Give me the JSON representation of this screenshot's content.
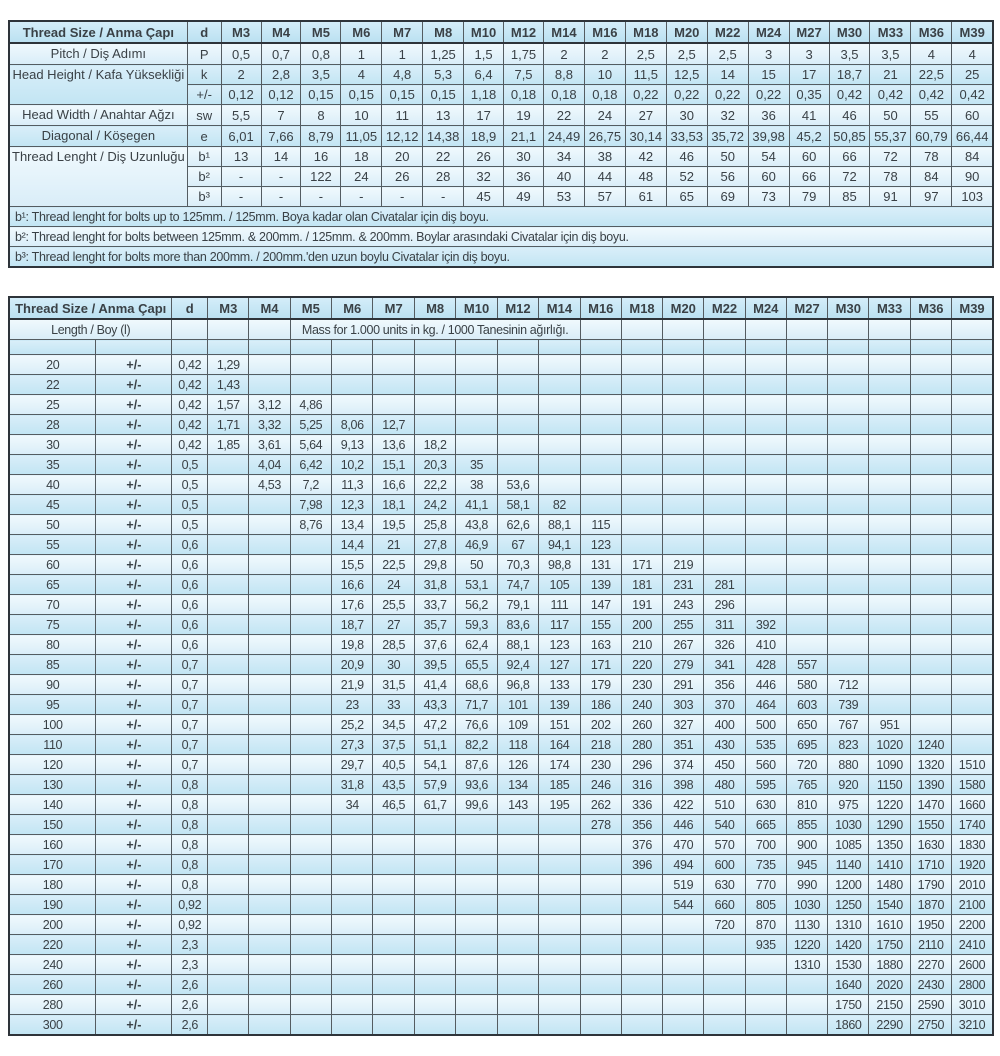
{
  "colors": {
    "row_light": "#e7f4fb",
    "row_blue": "#cde9f6",
    "header_blue": "#c3e4f2",
    "border": "#545c61",
    "text": "#3a4146"
  },
  "sizes": [
    "M3",
    "M4",
    "M5",
    "M6",
    "M7",
    "M8",
    "M10",
    "M12",
    "M14",
    "M16",
    "M18",
    "M20",
    "M22",
    "M24",
    "M27",
    "M30",
    "M33",
    "M36",
    "M39"
  ],
  "table1": {
    "corner_label": "Thread Size / Anma Çapı",
    "d_header": "d",
    "rows": [
      {
        "label": "Pitch / Diş Adımı",
        "rowspan": 1,
        "sym": "P",
        "shade": "light",
        "values": [
          "0,5",
          "0,7",
          "0,8",
          "1",
          "1",
          "1,25",
          "1,5",
          "1,75",
          "2",
          "2",
          "2,5",
          "2,5",
          "2,5",
          "3",
          "3",
          "3,5",
          "3,5",
          "4",
          "4"
        ]
      },
      {
        "label": "Head Height /\nKafa Yüksekliği",
        "rowspan": 2,
        "sym": "k",
        "shade": "blue",
        "values": [
          "2",
          "2,8",
          "3,5",
          "4",
          "4,8",
          "5,3",
          "6,4",
          "7,5",
          "8,8",
          "10",
          "11,5",
          "12,5",
          "14",
          "15",
          "17",
          "18,7",
          "21",
          "22,5",
          "25"
        ]
      },
      {
        "sym": "+/-",
        "shade": "blue",
        "values": [
          "0,12",
          "0,12",
          "0,15",
          "0,15",
          "0,15",
          "0,15",
          "1,18",
          "0,18",
          "0,18",
          "0,18",
          "0,22",
          "0,22",
          "0,22",
          "0,22",
          "0,35",
          "0,42",
          "0,42",
          "0,42",
          "0,42"
        ]
      },
      {
        "label": "Head Width / Anahtar Ağzı",
        "rowspan": 1,
        "sym": "sw",
        "shade": "light",
        "values": [
          "5,5",
          "7",
          "8",
          "10",
          "11",
          "13",
          "17",
          "19",
          "22",
          "24",
          "27",
          "30",
          "32",
          "36",
          "41",
          "46",
          "50",
          "55",
          "60"
        ]
      },
      {
        "label": "Diagonal / Köşegen",
        "rowspan": 1,
        "sym": "e",
        "shade": "blue",
        "values": [
          "6,01",
          "7,66",
          "8,79",
          "11,05",
          "12,12",
          "14,38",
          "18,9",
          "21,1",
          "24,49",
          "26,75",
          "30,14",
          "33,53",
          "35,72",
          "39,98",
          "45,2",
          "50,85",
          "55,37",
          "60,79",
          "66,44"
        ]
      },
      {
        "label": "Thread Lenght /\nDiş Uzunluğu",
        "rowspan": 3,
        "sym": "b¹",
        "shade": "light",
        "values": [
          "13",
          "14",
          "16",
          "18",
          "20",
          "22",
          "26",
          "30",
          "34",
          "38",
          "42",
          "46",
          "50",
          "54",
          "60",
          "66",
          "72",
          "78",
          "84"
        ]
      },
      {
        "sym": "b²",
        "shade": "light",
        "values": [
          "-",
          "-",
          "122",
          "24",
          "26",
          "28",
          "32",
          "36",
          "40",
          "44",
          "48",
          "52",
          "56",
          "60",
          "66",
          "72",
          "78",
          "84",
          "90"
        ]
      },
      {
        "sym": "b³",
        "shade": "light",
        "values": [
          "-",
          "-",
          "-",
          "-",
          "-",
          "-",
          "45",
          "49",
          "53",
          "57",
          "61",
          "65",
          "69",
          "73",
          "79",
          "85",
          "91",
          "97",
          "103"
        ]
      }
    ],
    "footnotes": [
      {
        "text": "b¹: Thread lenght for bolts up to 125mm. / 125mm. Boya kadar olan Civatalar için diş boyu.",
        "shade": "blue"
      },
      {
        "text": "b²: Thread lenght for bolts between 125mm. & 200mm. / 125mm. & 200mm. Boylar arasındaki Civatalar için diş boyu.",
        "shade": "light"
      },
      {
        "text": "b³: Thread lenght for bolts more than 200mm. / 200mm.'den uzun boylu Civatalar için diş boyu.",
        "shade": "blue"
      }
    ]
  },
  "table2": {
    "corner_label": "Thread Size / Anma Çapı",
    "d_header": "d",
    "length_label": "Length / Boy (l)",
    "mass_label": "Mass for 1.000 units in kg. / 1000 Tanesinin ağırlığı.",
    "tolerance_symbol": "+/-",
    "rows": [
      {
        "length": "20",
        "d": "0,42",
        "values": [
          "1,29",
          "",
          "",
          "",
          "",
          "",
          "",
          "",
          "",
          "",
          "",
          "",
          "",
          "",
          "",
          "",
          "",
          "",
          ""
        ]
      },
      {
        "length": "22",
        "d": "0,42",
        "values": [
          "1,43",
          "",
          "",
          "",
          "",
          "",
          "",
          "",
          "",
          "",
          "",
          "",
          "",
          "",
          "",
          "",
          "",
          "",
          ""
        ]
      },
      {
        "length": "25",
        "d": "0,42",
        "values": [
          "1,57",
          "3,12",
          "4,86",
          "",
          "",
          "",
          "",
          "",
          "",
          "",
          "",
          "",
          "",
          "",
          "",
          "",
          "",
          "",
          ""
        ]
      },
      {
        "length": "28",
        "d": "0,42",
        "values": [
          "1,71",
          "3,32",
          "5,25",
          "8,06",
          "12,7",
          "",
          "",
          "",
          "",
          "",
          "",
          "",
          "",
          "",
          "",
          "",
          "",
          "",
          ""
        ]
      },
      {
        "length": "30",
        "d": "0,42",
        "values": [
          "1,85",
          "3,61",
          "5,64",
          "9,13",
          "13,6",
          "18,2",
          "",
          "",
          "",
          "",
          "",
          "",
          "",
          "",
          "",
          "",
          "",
          "",
          ""
        ]
      },
      {
        "length": "35",
        "d": "0,5",
        "values": [
          "",
          "4,04",
          "6,42",
          "10,2",
          "15,1",
          "20,3",
          "35",
          "",
          "",
          "",
          "",
          "",
          "",
          "",
          "",
          "",
          "",
          "",
          ""
        ]
      },
      {
        "length": "40",
        "d": "0,5",
        "values": [
          "",
          "4,53",
          "7,2",
          "11,3",
          "16,6",
          "22,2",
          "38",
          "53,6",
          "",
          "",
          "",
          "",
          "",
          "",
          "",
          "",
          "",
          "",
          ""
        ]
      },
      {
        "length": "45",
        "d": "0,5",
        "values": [
          "",
          "",
          "7,98",
          "12,3",
          "18,1",
          "24,2",
          "41,1",
          "58,1",
          "82",
          "",
          "",
          "",
          "",
          "",
          "",
          "",
          "",
          "",
          ""
        ]
      },
      {
        "length": "50",
        "d": "0,5",
        "values": [
          "",
          "",
          "8,76",
          "13,4",
          "19,5",
          "25,8",
          "43,8",
          "62,6",
          "88,1",
          "115",
          "",
          "",
          "",
          "",
          "",
          "",
          "",
          "",
          ""
        ]
      },
      {
        "length": "55",
        "d": "0,6",
        "values": [
          "",
          "",
          "",
          "14,4",
          "21",
          "27,8",
          "46,9",
          "67",
          "94,1",
          "123",
          "",
          "",
          "",
          "",
          "",
          "",
          "",
          "",
          ""
        ]
      },
      {
        "length": "60",
        "d": "0,6",
        "values": [
          "",
          "",
          "",
          "15,5",
          "22,5",
          "29,8",
          "50",
          "70,3",
          "98,8",
          "131",
          "171",
          "219",
          "",
          "",
          "",
          "",
          "",
          "",
          ""
        ]
      },
      {
        "length": "65",
        "d": "0,6",
        "values": [
          "",
          "",
          "",
          "16,6",
          "24",
          "31,8",
          "53,1",
          "74,7",
          "105",
          "139",
          "181",
          "231",
          "281",
          "",
          "",
          "",
          "",
          "",
          ""
        ]
      },
      {
        "length": "70",
        "d": "0,6",
        "values": [
          "",
          "",
          "",
          "17,6",
          "25,5",
          "33,7",
          "56,2",
          "79,1",
          "111",
          "147",
          "191",
          "243",
          "296",
          "",
          "",
          "",
          "",
          "",
          ""
        ]
      },
      {
        "length": "75",
        "d": "0,6",
        "values": [
          "",
          "",
          "",
          "18,7",
          "27",
          "35,7",
          "59,3",
          "83,6",
          "117",
          "155",
          "200",
          "255",
          "311",
          "392",
          "",
          "",
          "",
          "",
          ""
        ]
      },
      {
        "length": "80",
        "d": "0,6",
        "values": [
          "",
          "",
          "",
          "19,8",
          "28,5",
          "37,6",
          "62,4",
          "88,1",
          "123",
          "163",
          "210",
          "267",
          "326",
          "410",
          "",
          "",
          "",
          "",
          ""
        ]
      },
      {
        "length": "85",
        "d": "0,7",
        "values": [
          "",
          "",
          "",
          "20,9",
          "30",
          "39,5",
          "65,5",
          "92,4",
          "127",
          "171",
          "220",
          "279",
          "341",
          "428",
          "557",
          "",
          "",
          "",
          ""
        ]
      },
      {
        "length": "90",
        "d": "0,7",
        "values": [
          "",
          "",
          "",
          "21,9",
          "31,5",
          "41,4",
          "68,6",
          "96,8",
          "133",
          "179",
          "230",
          "291",
          "356",
          "446",
          "580",
          "712",
          "",
          "",
          ""
        ]
      },
      {
        "length": "95",
        "d": "0,7",
        "values": [
          "",
          "",
          "",
          "23",
          "33",
          "43,3",
          "71,7",
          "101",
          "139",
          "186",
          "240",
          "303",
          "370",
          "464",
          "603",
          "739",
          "",
          "",
          ""
        ]
      },
      {
        "length": "100",
        "d": "0,7",
        "values": [
          "",
          "",
          "",
          "25,2",
          "34,5",
          "47,2",
          "76,6",
          "109",
          "151",
          "202",
          "260",
          "327",
          "400",
          "500",
          "650",
          "767",
          "951",
          "",
          ""
        ]
      },
      {
        "length": "110",
        "d": "0,7",
        "values": [
          "",
          "",
          "",
          "27,3",
          "37,5",
          "51,1",
          "82,2",
          "118",
          "164",
          "218",
          "280",
          "351",
          "430",
          "535",
          "695",
          "823",
          "1020",
          "1240",
          ""
        ]
      },
      {
        "length": "120",
        "d": "0,7",
        "values": [
          "",
          "",
          "",
          "29,7",
          "40,5",
          "54,1",
          "87,6",
          "126",
          "174",
          "230",
          "296",
          "374",
          "450",
          "560",
          "720",
          "880",
          "1090",
          "1320",
          "1510"
        ]
      },
      {
        "length": "130",
        "d": "0,8",
        "values": [
          "",
          "",
          "",
          "31,8",
          "43,5",
          "57,9",
          "93,6",
          "134",
          "185",
          "246",
          "316",
          "398",
          "480",
          "595",
          "765",
          "920",
          "1150",
          "1390",
          "1580"
        ]
      },
      {
        "length": "140",
        "d": "0,8",
        "values": [
          "",
          "",
          "",
          "34",
          "46,5",
          "61,7",
          "99,6",
          "143",
          "195",
          "262",
          "336",
          "422",
          "510",
          "630",
          "810",
          "975",
          "1220",
          "1470",
          "1660"
        ]
      },
      {
        "length": "150",
        "d": "0,8",
        "values": [
          "",
          "",
          "",
          "",
          "",
          "",
          "",
          "",
          "",
          "278",
          "356",
          "446",
          "540",
          "665",
          "855",
          "1030",
          "1290",
          "1550",
          "1740"
        ]
      },
      {
        "length": "160",
        "d": "0,8",
        "values": [
          "",
          "",
          "",
          "",
          "",
          "",
          "",
          "",
          "",
          "",
          "376",
          "470",
          "570",
          "700",
          "900",
          "1085",
          "1350",
          "1630",
          "1830"
        ]
      },
      {
        "length": "170",
        "d": "0,8",
        "values": [
          "",
          "",
          "",
          "",
          "",
          "",
          "",
          "",
          "",
          "",
          "396",
          "494",
          "600",
          "735",
          "945",
          "1140",
          "1410",
          "1710",
          "1920"
        ]
      },
      {
        "length": "180",
        "d": "0,8",
        "values": [
          "",
          "",
          "",
          "",
          "",
          "",
          "",
          "",
          "",
          "",
          "",
          "519",
          "630",
          "770",
          "990",
          "1200",
          "1480",
          "1790",
          "2010"
        ]
      },
      {
        "length": "190",
        "d": "0,92",
        "values": [
          "",
          "",
          "",
          "",
          "",
          "",
          "",
          "",
          "",
          "",
          "",
          "544",
          "660",
          "805",
          "1030",
          "1250",
          "1540",
          "1870",
          "2100"
        ]
      },
      {
        "length": "200",
        "d": "0,92",
        "values": [
          "",
          "",
          "",
          "",
          "",
          "",
          "",
          "",
          "",
          "",
          "",
          "",
          "720",
          "870",
          "1130",
          "1310",
          "1610",
          "1950",
          "2200"
        ]
      },
      {
        "length": "220",
        "d": "2,3",
        "values": [
          "",
          "",
          "",
          "",
          "",
          "",
          "",
          "",
          "",
          "",
          "",
          "",
          "",
          "935",
          "1220",
          "1420",
          "1750",
          "2110",
          "2410"
        ]
      },
      {
        "length": "240",
        "d": "2,3",
        "values": [
          "",
          "",
          "",
          "",
          "",
          "",
          "",
          "",
          "",
          "",
          "",
          "",
          "",
          "",
          "1310",
          "1530",
          "1880",
          "2270",
          "2600"
        ]
      },
      {
        "length": "260",
        "d": "2,6",
        "values": [
          "",
          "",
          "",
          "",
          "",
          "",
          "",
          "",
          "",
          "",
          "",
          "",
          "",
          "",
          "",
          "1640",
          "2020",
          "2430",
          "2800"
        ]
      },
      {
        "length": "280",
        "d": "2,6",
        "values": [
          "",
          "",
          "",
          "",
          "",
          "",
          "",
          "",
          "",
          "",
          "",
          "",
          "",
          "",
          "",
          "1750",
          "2150",
          "2590",
          "3010"
        ]
      },
      {
        "length": "300",
        "d": "2,6",
        "values": [
          "",
          "",
          "",
          "",
          "",
          "",
          "",
          "",
          "",
          "",
          "",
          "",
          "",
          "",
          "",
          "1860",
          "2290",
          "2750",
          "3210"
        ]
      }
    ]
  }
}
